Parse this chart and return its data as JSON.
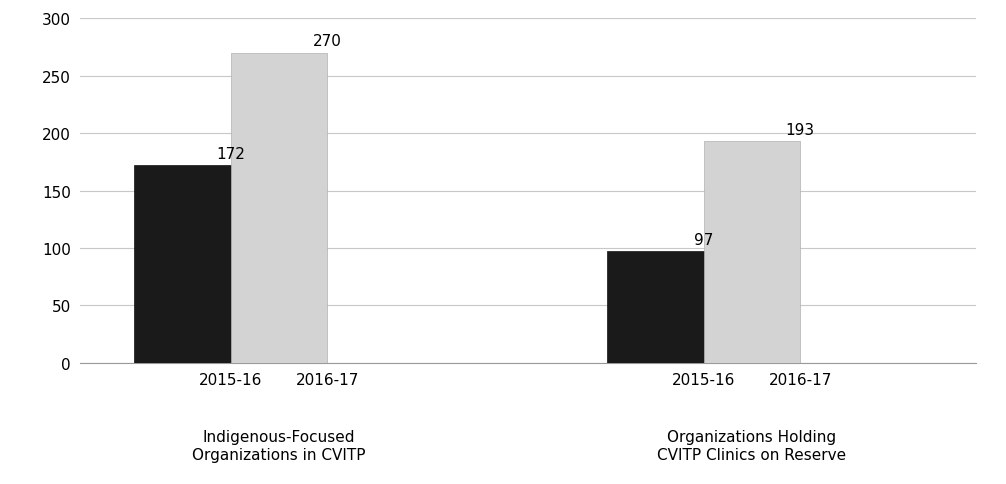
{
  "groups": [
    {
      "label": "Indigenous-Focused\nOrganizations in CVITP",
      "bars": [
        {
          "year": "2015-16",
          "value": 172,
          "color": "#1a1a1a"
        },
        {
          "year": "2016-17",
          "value": 270,
          "color": "#d3d3d3"
        }
      ]
    },
    {
      "label": "Organizations Holding\nCVITP Clinics on Reserve",
      "bars": [
        {
          "year": "2015-16",
          "value": 97,
          "color": "#1a1a1a"
        },
        {
          "year": "2016-17",
          "value": 193,
          "color": "#d3d3d3"
        }
      ]
    }
  ],
  "ylim": [
    0,
    300
  ],
  "yticks": [
    0,
    50,
    100,
    150,
    200,
    250,
    300
  ],
  "background_color": "#ffffff",
  "grid_color": "#c8c8c8",
  "label_fontsize": 11,
  "tick_fontsize": 11,
  "annotation_fontsize": 11,
  "bar_edge_colors": [
    "#111111",
    "#b0b0b0",
    "#111111",
    "#b0b0b0"
  ]
}
